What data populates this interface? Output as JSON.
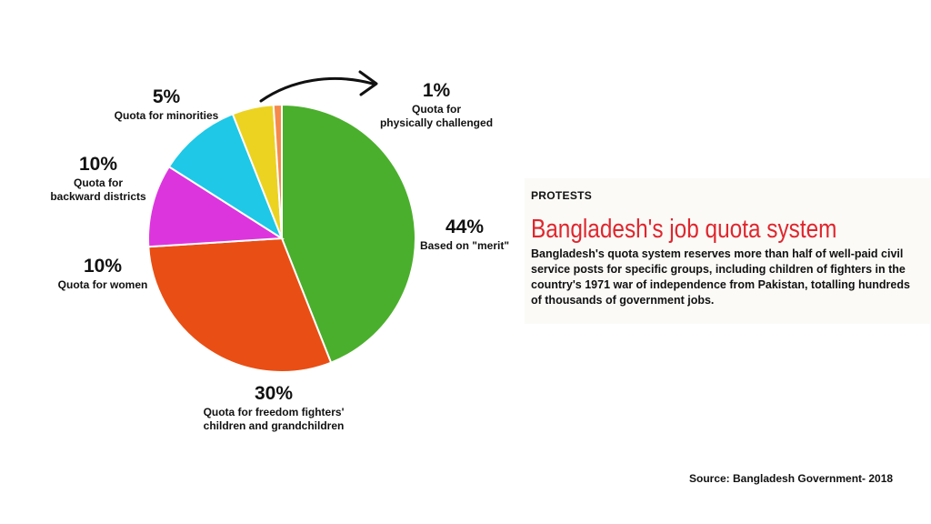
{
  "chart_data": {
    "type": "pie",
    "slices": [
      {
        "percent": "44%",
        "label": "Based on \"merit\"",
        "value": 44,
        "color": "#4aaf2c"
      },
      {
        "percent": "30%",
        "label": "Quota for freedom fighters'\nchildren and grandchildren",
        "value": 30,
        "color": "#e94e14"
      },
      {
        "percent": "10%",
        "label": "Quota for women",
        "value": 10,
        "color": "#dd35dd"
      },
      {
        "percent": "10%",
        "label": "Quota for\nbackward districts",
        "value": 10,
        "color": "#1ec8e6"
      },
      {
        "percent": "5%",
        "label": "Quota for minorities",
        "value": 5,
        "color": "#ecd321"
      },
      {
        "percent": "1%",
        "label": "Quota for\nphysically challenged",
        "value": 1,
        "color": "#f58a4a"
      }
    ]
  },
  "panel": {
    "kicker": "PROTESTS",
    "headline": "Bangladesh's job quota system",
    "description": "Bangladesh's quota system reserves more than half of well-paid civil service posts for specific groups, including children of fighters in the country's 1971 war of independence from Pakistan, totalling hundreds of thousands of government jobs."
  },
  "source": "Source: Bangladesh Government- 2018"
}
